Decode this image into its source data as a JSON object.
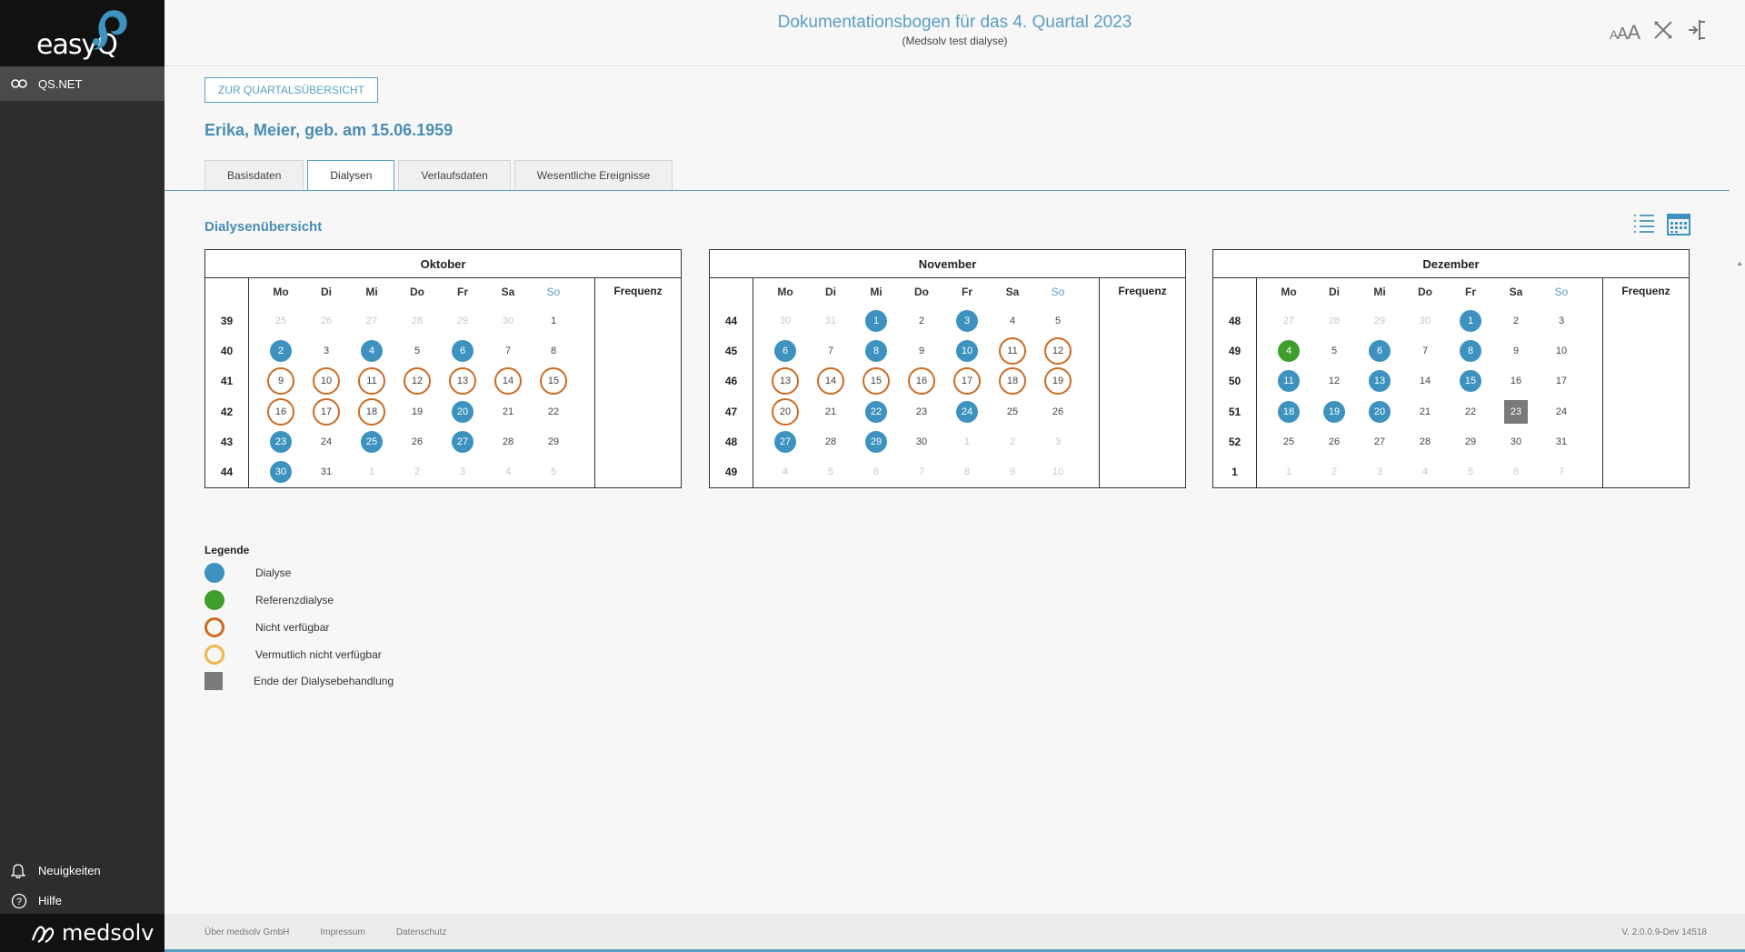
{
  "app": {
    "logo": "easyQ",
    "nav": [
      {
        "label": "QS.NET",
        "icon": "qsnet-icon"
      }
    ],
    "bottom_links": [
      {
        "label": "Neuigkeiten",
        "icon": "bell-icon"
      },
      {
        "label": "Hilfe",
        "icon": "help-icon"
      }
    ],
    "brand": "medsolv"
  },
  "header": {
    "title": "Dokumentationsbogen für das 4. Quartal 2023",
    "subtitle": "(Medsolv test dialyse)",
    "font_size_label": "AAA"
  },
  "main": {
    "back_label": "ZUR QUARTALSÜBERSICHT",
    "patient": "Erika, Meier, geb. am 15.06.1959",
    "tabs": [
      "Basisdaten",
      "Dialysen",
      "Verlaufsdaten",
      "Wesentliche Ereignisse"
    ],
    "active_tab": 1,
    "section_title": "Dialysenübersicht",
    "freq_label": "Frequenz",
    "weekdays": [
      "Mo",
      "Di",
      "Mi",
      "Do",
      "Fr",
      "Sa",
      "So"
    ]
  },
  "calendars": [
    {
      "month": "Oktober",
      "kw": [
        "39",
        "40",
        "41",
        "42",
        "43",
        "44"
      ],
      "weeks": [
        [
          {
            "d": "25",
            "s": "out"
          },
          {
            "d": "26",
            "s": "out"
          },
          {
            "d": "27",
            "s": "out"
          },
          {
            "d": "28",
            "s": "out"
          },
          {
            "d": "29",
            "s": "out"
          },
          {
            "d": "30",
            "s": "out"
          },
          {
            "d": "1",
            "s": ""
          }
        ],
        [
          {
            "d": "2",
            "s": "dialyse"
          },
          {
            "d": "3",
            "s": ""
          },
          {
            "d": "4",
            "s": "dialyse"
          },
          {
            "d": "5",
            "s": ""
          },
          {
            "d": "6",
            "s": "dialyse"
          },
          {
            "d": "7",
            "s": ""
          },
          {
            "d": "8",
            "s": ""
          }
        ],
        [
          {
            "d": "9",
            "s": "na"
          },
          {
            "d": "10",
            "s": "na"
          },
          {
            "d": "11",
            "s": "na"
          },
          {
            "d": "12",
            "s": "na"
          },
          {
            "d": "13",
            "s": "na"
          },
          {
            "d": "14",
            "s": "na"
          },
          {
            "d": "15",
            "s": "na"
          }
        ],
        [
          {
            "d": "16",
            "s": "na"
          },
          {
            "d": "17",
            "s": "na"
          },
          {
            "d": "18",
            "s": "na"
          },
          {
            "d": "19",
            "s": ""
          },
          {
            "d": "20",
            "s": "dialyse"
          },
          {
            "d": "21",
            "s": ""
          },
          {
            "d": "22",
            "s": ""
          }
        ],
        [
          {
            "d": "23",
            "s": "dialyse"
          },
          {
            "d": "24",
            "s": ""
          },
          {
            "d": "25",
            "s": "dialyse"
          },
          {
            "d": "26",
            "s": ""
          },
          {
            "d": "27",
            "s": "dialyse"
          },
          {
            "d": "28",
            "s": ""
          },
          {
            "d": "29",
            "s": ""
          }
        ],
        [
          {
            "d": "30",
            "s": "dialyse"
          },
          {
            "d": "31",
            "s": ""
          },
          {
            "d": "1",
            "s": "out"
          },
          {
            "d": "2",
            "s": "out"
          },
          {
            "d": "3",
            "s": "out"
          },
          {
            "d": "4",
            "s": "out"
          },
          {
            "d": "5",
            "s": "out"
          }
        ]
      ]
    },
    {
      "month": "November",
      "kw": [
        "44",
        "45",
        "46",
        "47",
        "48",
        "49"
      ],
      "weeks": [
        [
          {
            "d": "30",
            "s": "out"
          },
          {
            "d": "31",
            "s": "out"
          },
          {
            "d": "1",
            "s": "dialyse"
          },
          {
            "d": "2",
            "s": ""
          },
          {
            "d": "3",
            "s": "dialyse"
          },
          {
            "d": "4",
            "s": ""
          },
          {
            "d": "5",
            "s": ""
          }
        ],
        [
          {
            "d": "6",
            "s": "dialyse"
          },
          {
            "d": "7",
            "s": ""
          },
          {
            "d": "8",
            "s": "dialyse"
          },
          {
            "d": "9",
            "s": ""
          },
          {
            "d": "10",
            "s": "dialyse"
          },
          {
            "d": "11",
            "s": "na"
          },
          {
            "d": "12",
            "s": "na"
          }
        ],
        [
          {
            "d": "13",
            "s": "na"
          },
          {
            "d": "14",
            "s": "na"
          },
          {
            "d": "15",
            "s": "na"
          },
          {
            "d": "16",
            "s": "na"
          },
          {
            "d": "17",
            "s": "na"
          },
          {
            "d": "18",
            "s": "na"
          },
          {
            "d": "19",
            "s": "na"
          }
        ],
        [
          {
            "d": "20",
            "s": "na"
          },
          {
            "d": "21",
            "s": ""
          },
          {
            "d": "22",
            "s": "dialyse"
          },
          {
            "d": "23",
            "s": ""
          },
          {
            "d": "24",
            "s": "dialyse"
          },
          {
            "d": "25",
            "s": ""
          },
          {
            "d": "26",
            "s": ""
          }
        ],
        [
          {
            "d": "27",
            "s": "dialyse"
          },
          {
            "d": "28",
            "s": ""
          },
          {
            "d": "29",
            "s": "dialyse"
          },
          {
            "d": "30",
            "s": ""
          },
          {
            "d": "1",
            "s": "out"
          },
          {
            "d": "2",
            "s": "out"
          },
          {
            "d": "3",
            "s": "out"
          }
        ],
        [
          {
            "d": "4",
            "s": "out"
          },
          {
            "d": "5",
            "s": "out"
          },
          {
            "d": "6",
            "s": "out"
          },
          {
            "d": "7",
            "s": "out"
          },
          {
            "d": "8",
            "s": "out"
          },
          {
            "d": "9",
            "s": "out"
          },
          {
            "d": "10",
            "s": "out"
          }
        ]
      ]
    },
    {
      "month": "Dezember",
      "kw": [
        "48",
        "49",
        "50",
        "51",
        "52",
        "1"
      ],
      "weeks": [
        [
          {
            "d": "27",
            "s": "out"
          },
          {
            "d": "28",
            "s": "out"
          },
          {
            "d": "29",
            "s": "out"
          },
          {
            "d": "30",
            "s": "out"
          },
          {
            "d": "1",
            "s": "dialyse"
          },
          {
            "d": "2",
            "s": ""
          },
          {
            "d": "3",
            "s": ""
          }
        ],
        [
          {
            "d": "4",
            "s": "ref"
          },
          {
            "d": "5",
            "s": ""
          },
          {
            "d": "6",
            "s": "dialyse"
          },
          {
            "d": "7",
            "s": ""
          },
          {
            "d": "8",
            "s": "dialyse"
          },
          {
            "d": "9",
            "s": ""
          },
          {
            "d": "10",
            "s": ""
          }
        ],
        [
          {
            "d": "11",
            "s": "dialyse"
          },
          {
            "d": "12",
            "s": ""
          },
          {
            "d": "13",
            "s": "dialyse"
          },
          {
            "d": "14",
            "s": ""
          },
          {
            "d": "15",
            "s": "dialyse"
          },
          {
            "d": "16",
            "s": ""
          },
          {
            "d": "17",
            "s": ""
          }
        ],
        [
          {
            "d": "18",
            "s": "dialyse"
          },
          {
            "d": "19",
            "s": "dialyse"
          },
          {
            "d": "20",
            "s": "dialyse"
          },
          {
            "d": "21",
            "s": ""
          },
          {
            "d": "22",
            "s": ""
          },
          {
            "d": "23",
            "s": "end"
          },
          {
            "d": "24",
            "s": ""
          }
        ],
        [
          {
            "d": "25",
            "s": ""
          },
          {
            "d": "26",
            "s": ""
          },
          {
            "d": "27",
            "s": ""
          },
          {
            "d": "28",
            "s": ""
          },
          {
            "d": "29",
            "s": ""
          },
          {
            "d": "30",
            "s": ""
          },
          {
            "d": "31",
            "s": ""
          }
        ],
        [
          {
            "d": "1",
            "s": "out"
          },
          {
            "d": "2",
            "s": "out"
          },
          {
            "d": "3",
            "s": "out"
          },
          {
            "d": "4",
            "s": "out"
          },
          {
            "d": "5",
            "s": "out"
          },
          {
            "d": "6",
            "s": "out"
          },
          {
            "d": "7",
            "s": "out"
          }
        ]
      ]
    }
  ],
  "legend": {
    "title": "Legende",
    "items": [
      {
        "label": "Dialyse",
        "swatch": "s-dial",
        "color": "#3d92bf"
      },
      {
        "label": "Referenzdialyse",
        "swatch": "s-ref",
        "color": "#3f9e2c"
      },
      {
        "label": "Nicht verfügbar",
        "swatch": "s-na",
        "color": "#cd6b22"
      },
      {
        "label": "Vermutlich nicht verfügbar",
        "swatch": "s-maybe",
        "color": "#f0b64a"
      },
      {
        "label": "Ende der Dialysebehandlung",
        "swatch": "s-end",
        "color": "#7a7a7a"
      }
    ]
  },
  "footer": {
    "links": [
      "Über medsolv GmbH",
      "Impressum",
      "Datenschutz"
    ],
    "version": "V. 2.0.0.9-Dev 14518"
  }
}
